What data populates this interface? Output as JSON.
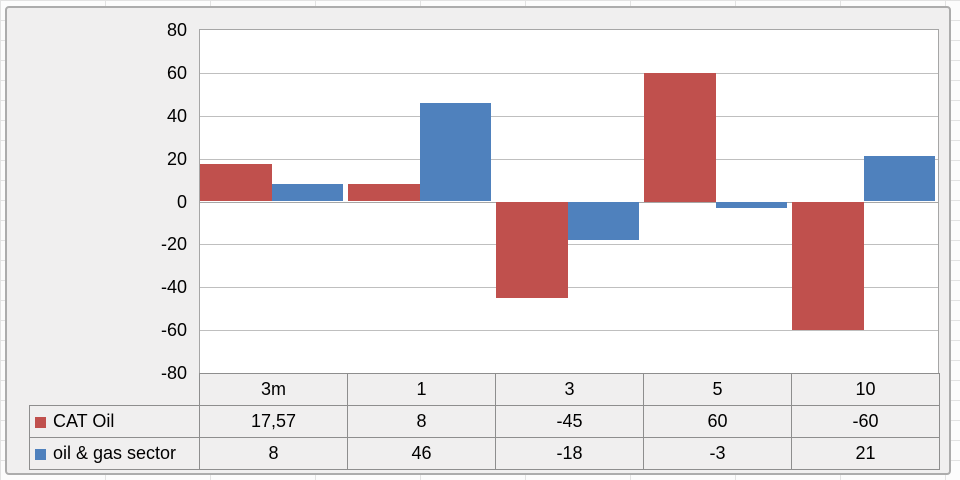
{
  "chart_data": {
    "type": "bar",
    "title": "",
    "xlabel": "",
    "ylabel": "",
    "categories": [
      "3m",
      "1",
      "3",
      "5",
      "10"
    ],
    "series": [
      {
        "name": "CAT Oil",
        "color": "#C0504D",
        "values": [
          17.57,
          8,
          -45,
          60,
          -60
        ],
        "display_values": [
          "17,57",
          "8",
          "-45",
          "60",
          "-60"
        ]
      },
      {
        "name": "oil & gas sector",
        "color": "#4F81BD",
        "values": [
          8,
          46,
          -18,
          -3,
          21
        ],
        "display_values": [
          "8",
          "46",
          "-18",
          "-3",
          "21"
        ]
      }
    ],
    "ylim": [
      -80,
      80
    ],
    "ytick_step": 20,
    "yticks": [
      "80",
      "60",
      "40",
      "20",
      "0",
      "-20",
      "-40",
      "-60",
      "-80"
    ],
    "grid": true,
    "legend_position": "data-table-left",
    "data_table_shown": true
  },
  "colors": {
    "chart_background": "#F0EFEF",
    "plot_background": "#FFFFFF",
    "gridline": "#BFBFBF",
    "axis_line": "#A6A6A6",
    "table_border": "#8E8E8E",
    "chart_border": "#ACACAC",
    "sheet_background": "#FCFCFC",
    "sheet_gridline": "#E2E2E2",
    "text": "#000000",
    "series_cat_oil": "#C0504D",
    "series_oil_gas_sector": "#4F81BD"
  }
}
